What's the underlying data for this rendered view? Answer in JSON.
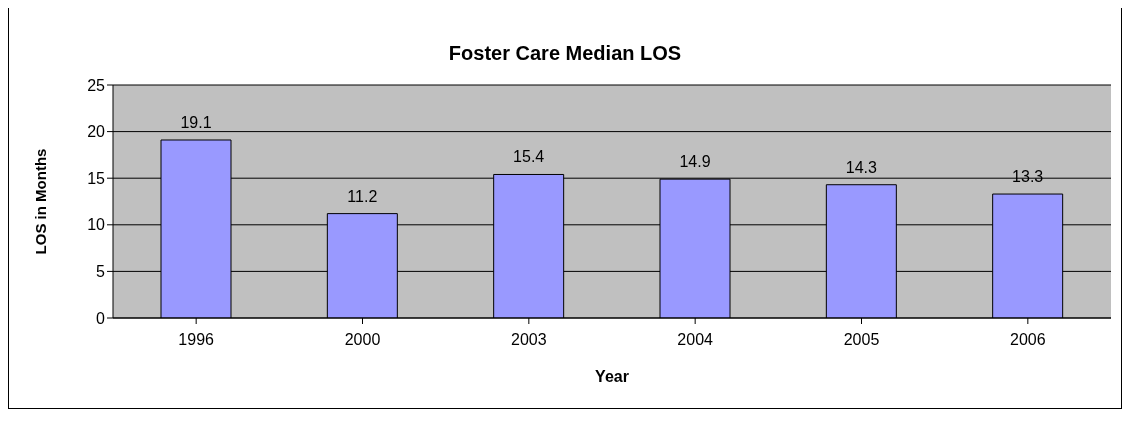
{
  "chart_data": {
    "type": "bar",
    "title": "Foster Care Median LOS",
    "xlabel": "Year",
    "ylabel": "LOS in Months",
    "categories": [
      "1996",
      "2000",
      "2003",
      "2004",
      "2005",
      "2006"
    ],
    "values": [
      19.1,
      11.2,
      15.4,
      14.9,
      14.3,
      13.3
    ],
    "color": "#9999ff",
    "ylim": [
      0,
      25
    ],
    "yticks": [
      0,
      5,
      10,
      15,
      20,
      25
    ],
    "grid": "y",
    "data_labels": true
  }
}
